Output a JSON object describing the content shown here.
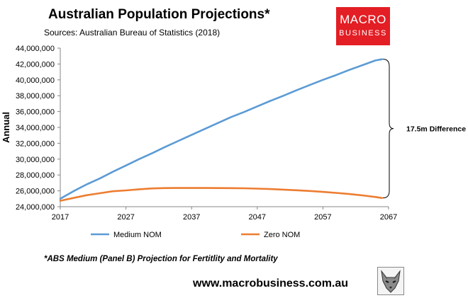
{
  "header": {
    "title": "Australian Population Projections*",
    "source": "Sources: Australian Bureau of Statistics (2018)"
  },
  "logo": {
    "line1": "MACRO",
    "line2": "BUSINESS",
    "bg_color": "#e31e24"
  },
  "footer": {
    "note": "*ABS Medium (Panel B) Projection for Fertitlity and Mortality",
    "url": "www.macrobusiness.com.au",
    "emblem_icon": "wolf-emblem-icon"
  },
  "chart_data": {
    "type": "line",
    "title": "Australian Population Projections*",
    "xlabel": "",
    "ylabel": "Annual",
    "xlim": [
      2017,
      2067
    ],
    "ylim": [
      24000000,
      44000000
    ],
    "x_ticks": [
      "2017",
      "2027",
      "2037",
      "2047",
      "2057",
      "2067"
    ],
    "y_ticks": [
      "24,000,000",
      "26,000,000",
      "28,000,000",
      "30,000,000",
      "32,000,000",
      "34,000,000",
      "36,000,000",
      "38,000,000",
      "40,000,000",
      "42,000,000",
      "44,000,000"
    ],
    "grid": false,
    "legend": "bottom",
    "x": [
      2017,
      2019,
      2021,
      2023,
      2025,
      2027,
      2029,
      2031,
      2033,
      2035,
      2037,
      2039,
      2041,
      2043,
      2045,
      2047,
      2049,
      2051,
      2053,
      2055,
      2057,
      2059,
      2061,
      2063,
      2065,
      2066
    ],
    "series": [
      {
        "name": "Medium NOM",
        "color": "#5b9bd5",
        "values": [
          25000000,
          25950000,
          26800000,
          27550000,
          28400000,
          29200000,
          30000000,
          30750000,
          31550000,
          32300000,
          33050000,
          33800000,
          34550000,
          35300000,
          35950000,
          36650000,
          37350000,
          38000000,
          38700000,
          39350000,
          40000000,
          40600000,
          41250000,
          41850000,
          42450000,
          42600000
        ]
      },
      {
        "name": "Zero NOM",
        "color": "#ed7d31",
        "values": [
          24750000,
          25100000,
          25450000,
          25700000,
          25950000,
          26050000,
          26200000,
          26300000,
          26350000,
          26360000,
          26360000,
          26360000,
          26350000,
          26340000,
          26320000,
          26280000,
          26220000,
          26150000,
          26070000,
          25980000,
          25870000,
          25740000,
          25600000,
          25430000,
          25220000,
          25100000
        ]
      }
    ],
    "annotation": {
      "text": "17.5m Difference"
    }
  }
}
